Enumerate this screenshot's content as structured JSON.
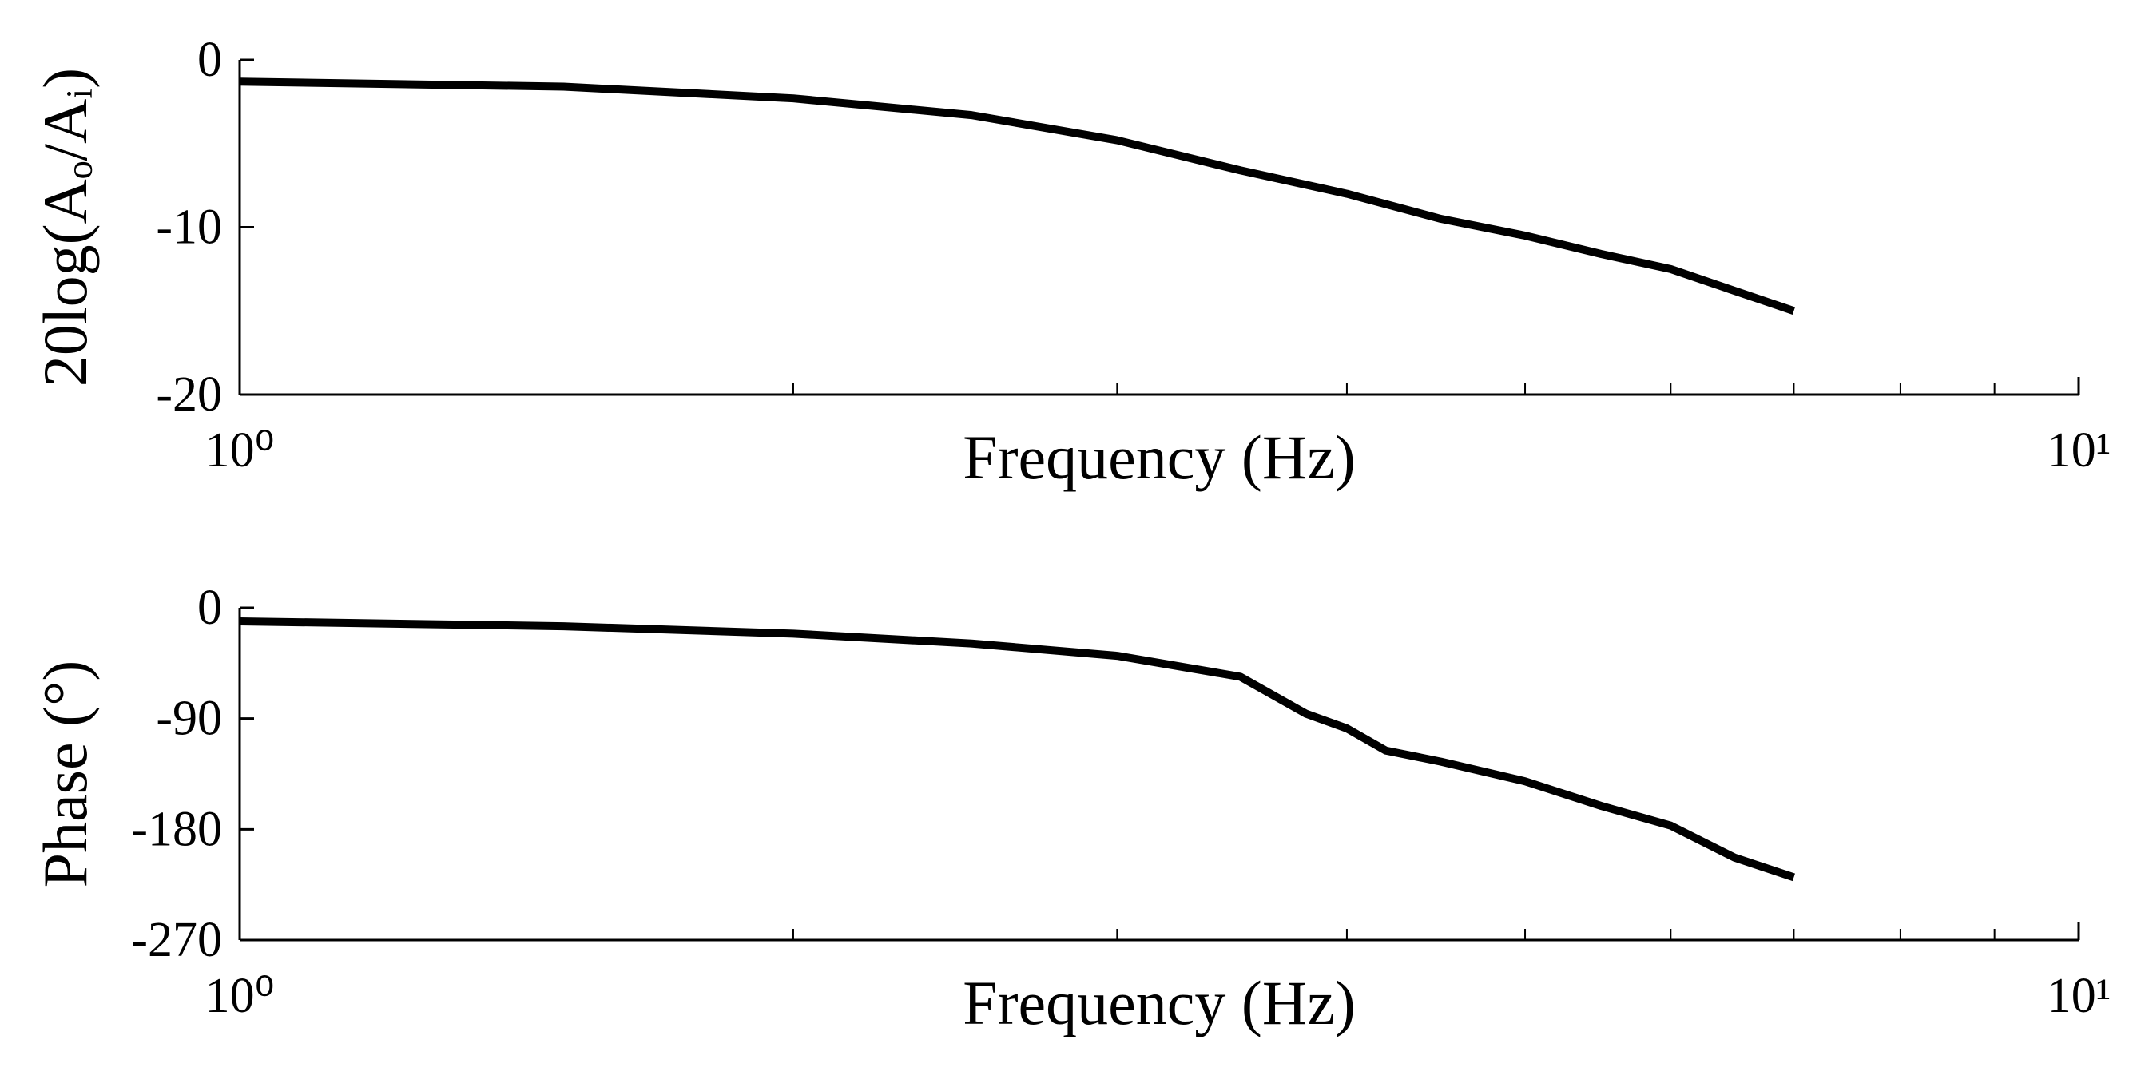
{
  "chart_data": [
    {
      "type": "line",
      "xscale": "log",
      "xlabel": "Frequency (Hz)",
      "ylabel": "20log(Aₒ/Aᵢ)",
      "x": [
        1,
        1.5,
        2,
        2.5,
        3,
        3.5,
        4,
        4.5,
        5,
        5.5,
        6,
        6.5,
        7
      ],
      "series": [
        {
          "color": "#000000",
          "values": [
            -1.3,
            -1.6,
            -2.3,
            -3.3,
            -4.8,
            -6.6,
            -8.0,
            -9.5,
            -10.5,
            -11.6,
            -12.5,
            -13.8,
            -15.0
          ]
        }
      ],
      "xlim": [
        1,
        10
      ],
      "xticks": [
        {
          "value": 1,
          "label": "10⁰"
        },
        {
          "value": 10,
          "label": "10¹"
        }
      ],
      "ylim": [
        -20,
        0
      ],
      "yticks": [
        -20,
        -10,
        0
      ]
    },
    {
      "type": "line",
      "xscale": "log",
      "xlabel": "Frequency (Hz)",
      "ylabel": "Phase (°)",
      "x": [
        1,
        1.5,
        2,
        2.5,
        3,
        3.5,
        3.8,
        4,
        4.2,
        4.5,
        5,
        5.5,
        6,
        6.5,
        7
      ],
      "series": [
        {
          "color": "#000000",
          "values": [
            -11,
            -15,
            -21,
            -29,
            -39,
            -56,
            -86,
            -98,
            -116,
            -125,
            -141,
            -161,
            -177,
            -203,
            -219
          ]
        }
      ],
      "xlim": [
        1,
        10
      ],
      "xticks": [
        {
          "value": 1,
          "label": "10⁰"
        },
        {
          "value": 10,
          "label": "10¹"
        }
      ],
      "ylim": [
        -270,
        0
      ],
      "yticks": [
        -270,
        -180,
        -90,
        0
      ]
    }
  ]
}
